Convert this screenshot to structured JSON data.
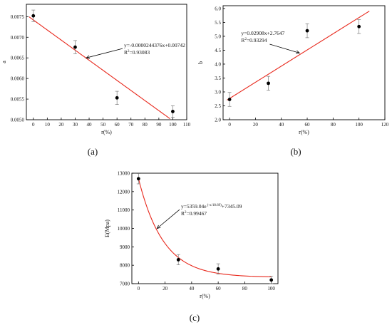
{
  "chart_data": [
    {
      "type": "scatter",
      "panel_label": "(a)",
      "xlabel": "r(%)",
      "ylabel": "a",
      "xlim": [
        -5,
        110
      ],
      "ylim": [
        0.005,
        0.0078
      ],
      "xticks": [
        0,
        10,
        20,
        30,
        40,
        50,
        60,
        70,
        80,
        90,
        100,
        110
      ],
      "yticks": [
        0.005,
        0.0055,
        0.006,
        0.0065,
        0.007,
        0.0075
      ],
      "ytick_labels": [
        "0.0050",
        "0.0055",
        "0.0060",
        "0.0065",
        "0.0070",
        "0.0075"
      ],
      "points": {
        "x": [
          0,
          30,
          60,
          100
        ],
        "y": [
          0.00752,
          0.00676,
          0.00553,
          0.0052
        ],
        "err": [
          0.00014,
          0.00016,
          0.00016,
          0.00014
        ]
      },
      "fit": {
        "kind": "linear",
        "slope": -2.44376e-05,
        "intercept": 0.00742,
        "x_range": [
          -3,
          98
        ]
      },
      "annotation": {
        "line1": "y=-0.0000244376x+0.00742",
        "r_prefix": "R",
        "r_sup": "2",
        "r_value": "=0.93083",
        "anchor_data": [
          65,
          0.00676
        ],
        "arrow_to": [
          38,
          0.0065
        ]
      },
      "grid": false,
      "legend": "none"
    },
    {
      "type": "scatter",
      "panel_label": "(b)",
      "xlabel": "r(%)",
      "ylabel": "b",
      "xlim": [
        -5,
        120
      ],
      "ylim": [
        2.0,
        6.1
      ],
      "xticks": [
        0,
        20,
        40,
        60,
        80,
        100,
        120
      ],
      "yticks": [
        2.0,
        2.5,
        3.0,
        3.5,
        4.0,
        4.5,
        5.0,
        5.5,
        6.0
      ],
      "ytick_labels": [
        "2.0",
        "2.5",
        "3.0",
        "3.5",
        "4.0",
        "4.5",
        "5.0",
        "5.5",
        "6.0"
      ],
      "points": {
        "x": [
          0,
          30,
          60,
          100
        ],
        "y": [
          2.73,
          3.31,
          5.2,
          5.35
        ],
        "err": [
          0.25,
          0.25,
          0.25,
          0.25
        ]
      },
      "fit": {
        "kind": "linear",
        "slope": 0.02908,
        "intercept": 2.7647,
        "x_range": [
          -2,
          108
        ]
      },
      "annotation": {
        "line1": "y=0.02908x+2.7647",
        "r_prefix": "R",
        "r_sup": "2",
        "r_value": "=0.93294",
        "anchor_data": [
          9,
          5.05
        ],
        "arrow_to": [
          54,
          4.4
        ]
      },
      "grid": false,
      "legend": "none"
    },
    {
      "type": "scatter",
      "panel_label": "(c)",
      "xlabel": "r(%)",
      "ylabel": "E(Mpa)",
      "xlim": [
        -5,
        105
      ],
      "ylim": [
        7000,
        13000
      ],
      "xticks": [
        0,
        20,
        40,
        60,
        80,
        100
      ],
      "yticks": [
        7000,
        8000,
        9000,
        10000,
        11000,
        12000,
        13000
      ],
      "ytick_labels": [
        "7000",
        "8000",
        "9000",
        "10000",
        "11000",
        "12000",
        "13000"
      ],
      "points": {
        "x": [
          0,
          30,
          60,
          100
        ],
        "y": [
          12700,
          8300,
          7800,
          7200
        ],
        "err": [
          280,
          280,
          280,
          200
        ]
      },
      "fit": {
        "kind": "exponential",
        "A": 5359.04,
        "t": 18.69,
        "y0": 7345.09,
        "x_range": [
          0,
          100
        ]
      },
      "annotation": {
        "line1_main": "y=5359.04e",
        "line1_sup": "(-x/18.69)",
        "line1_tail": "+7345.09",
        "r_prefix": "R",
        "r_sup": "2",
        "r_value": "=0.99467",
        "anchor_data": [
          32,
          11100
        ],
        "arrow_to": [
          14,
          10000
        ]
      },
      "grid": false,
      "legend": "none"
    }
  ],
  "colors": {
    "fit_line": "#e8281c",
    "points": "#000000",
    "axes": "#000000",
    "error_bars": "#7a7a7a"
  }
}
